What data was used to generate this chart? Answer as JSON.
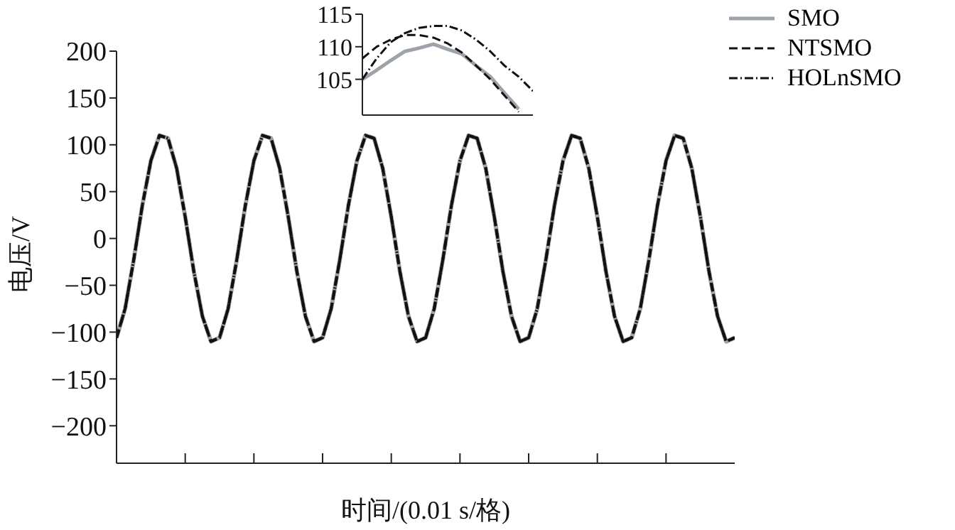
{
  "chart_data": [
    {
      "type": "line",
      "xlabel": "时间/(0.01 s/格)",
      "ylabel": "电压/V",
      "categories": [
        null,
        null,
        null,
        null,
        null,
        null,
        null,
        null,
        null,
        null,
        null,
        null,
        null,
        null,
        null,
        null,
        null,
        null,
        null,
        null,
        null,
        null,
        null,
        null,
        null,
        null,
        null,
        null,
        null,
        null,
        null,
        null,
        null,
        null,
        null,
        null,
        null,
        null,
        null,
        null,
        null,
        null,
        null,
        null,
        null,
        null,
        null,
        null,
        null,
        null,
        null,
        null,
        null,
        null,
        null,
        null,
        null,
        null,
        null,
        null,
        null,
        null,
        null,
        null,
        null,
        null,
        null,
        null,
        null,
        null,
        null,
        null,
        null
      ],
      "ylim": [
        -240,
        200
      ],
      "yticks": [
        -200,
        -150,
        -100,
        -50,
        0,
        50,
        100,
        150,
        200
      ],
      "legend": "top right",
      "marker": "none",
      "tick_labels": "y",
      "series": [
        {
          "name": "SMO",
          "color": "#9ea3aa",
          "line_style": "solid",
          "values": [
            -106,
            -75,
            -23,
            35,
            83,
            110,
            107,
            75,
            23,
            -35,
            -83,
            -110,
            -106,
            -75,
            -23,
            35,
            83,
            110,
            107,
            75,
            23,
            -35,
            -83,
            -110,
            -106,
            -75,
            -23,
            35,
            83,
            110,
            107,
            75,
            23,
            -35,
            -83,
            -110,
            -106,
            -75,
            -23,
            35,
            83,
            110,
            107,
            75,
            23,
            -35,
            -83,
            -110,
            -106,
            -75,
            -23,
            35,
            83,
            110,
            107,
            75,
            23,
            -35,
            -83,
            -110,
            -106,
            -75,
            -23,
            35,
            83,
            110,
            107,
            75,
            23,
            -35,
            -83,
            -110,
            -106
          ]
        },
        {
          "name": "NTSMO",
          "color": "#111111",
          "line_style": "dashed",
          "values": [
            -106,
            -75,
            -23,
            35,
            83,
            110,
            107,
            75,
            23,
            -35,
            -83,
            -110,
            -106,
            -75,
            -23,
            35,
            83,
            110,
            107,
            75,
            23,
            -35,
            -83,
            -110,
            -106,
            -75,
            -23,
            35,
            83,
            110,
            107,
            75,
            23,
            -35,
            -83,
            -110,
            -106,
            -75,
            -23,
            35,
            83,
            110,
            107,
            75,
            23,
            -35,
            -83,
            -110,
            -106,
            -75,
            -23,
            35,
            83,
            110,
            107,
            75,
            23,
            -35,
            -83,
            -110,
            -106,
            -75,
            -23,
            35,
            83,
            110,
            107,
            75,
            23,
            -35,
            -83,
            -110,
            -106
          ]
        },
        {
          "name": "HOLnSMO",
          "color": "#111111",
          "line_style": "dashdot",
          "values": [
            -106,
            -75,
            -23,
            35,
            83,
            110,
            107,
            75,
            23,
            -35,
            -83,
            -110,
            -106,
            -75,
            -23,
            35,
            83,
            110,
            107,
            75,
            23,
            -35,
            -83,
            -110,
            -106,
            -75,
            -23,
            35,
            83,
            110,
            107,
            75,
            23,
            -35,
            -83,
            -110,
            -106,
            -75,
            -23,
            35,
            83,
            110,
            107,
            75,
            23,
            -35,
            -83,
            -110,
            -106,
            -75,
            -23,
            35,
            83,
            110,
            107,
            75,
            23,
            -35,
            -83,
            -110,
            -106,
            -75,
            -23,
            35,
            83,
            110,
            107,
            75,
            23,
            -35,
            -83,
            -110,
            -106
          ]
        }
      ]
    },
    {
      "type": "line",
      "categories": [
        null,
        null,
        null,
        null,
        null,
        null,
        null,
        null,
        null,
        null,
        null,
        null,
        null
      ],
      "ylim": [
        99.5,
        115
      ],
      "yticks": [
        105,
        110,
        115
      ],
      "marker": "none",
      "tick_labels": "y",
      "series": [
        {
          "color": "#9ea3aa",
          "line_style": "solid",
          "values": [
            105,
            106.4,
            107.9,
            109.3,
            109.8,
            110.4,
            109.6,
            108.9,
            107.1,
            105.4,
            102.9,
            100.4,
            null
          ]
        },
        {
          "color": "#111111",
          "line_style": "dashed",
          "values": [
            108.2,
            110,
            111.1,
            111.8,
            111.8,
            111.4,
            110.5,
            109.1,
            107.1,
            105,
            102.5,
            100,
            null
          ]
        },
        {
          "color": "#111111",
          "line_style": "dashdot",
          "values": [
            105,
            108.2,
            110.7,
            112.1,
            112.9,
            113.2,
            113.2,
            112.5,
            111.1,
            109.3,
            107.1,
            105.4,
            103.2
          ]
        }
      ]
    }
  ]
}
